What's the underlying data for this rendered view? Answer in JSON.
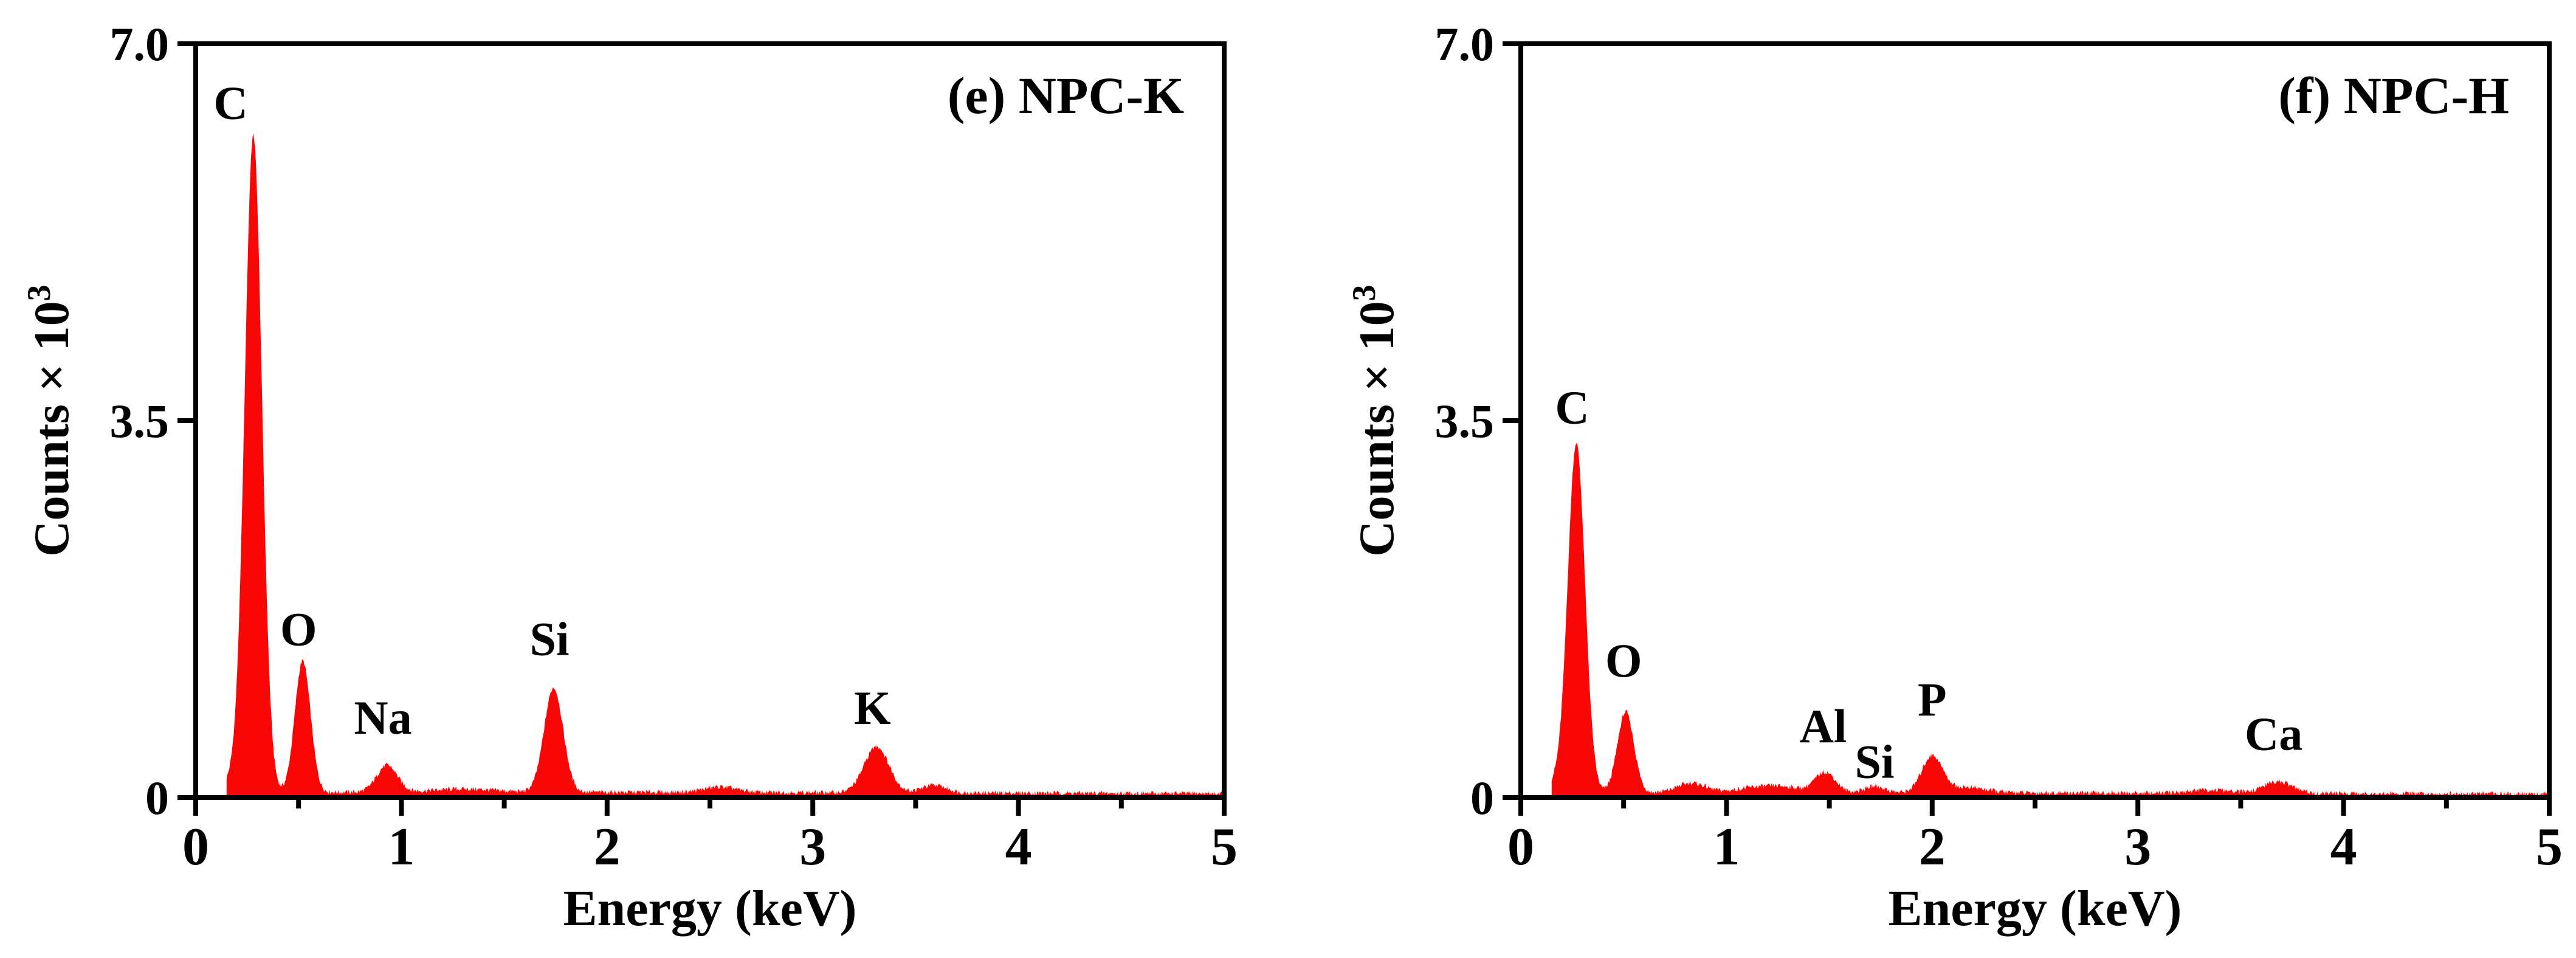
{
  "figure": {
    "background": "#ffffff",
    "spectrum_color": "#f90606",
    "axis_color": "#000000",
    "description": "EDS spectra of NPC-K and NPC-H samples"
  },
  "chart_data": [
    {
      "type": "area",
      "panel_id": "e",
      "panel_label": "(e) NPC-K",
      "xlabel": "Energy (keV)",
      "ylabel": "Counts × 10",
      "ylabel_exponent": "3",
      "xlim": [
        0,
        5
      ],
      "ylim": [
        0,
        7
      ],
      "x_major_ticks": [
        0,
        1,
        2,
        3,
        4,
        5
      ],
      "x_minor_ticks": [
        0.5,
        1.5,
        2.5,
        3.5,
        4.5
      ],
      "y_ticks": [
        {
          "value": 0,
          "label": "0"
        },
        {
          "value": 3.5,
          "label": "3.5"
        },
        {
          "value": 7,
          "label": "7.0"
        }
      ],
      "peaks": [
        {
          "element": "C",
          "center": 0.28,
          "height": 6.1,
          "sigma": 0.042,
          "label_x": 0.17,
          "label_y": 6.45
        },
        {
          "element": "O",
          "center": 0.52,
          "height": 1.22,
          "sigma": 0.038,
          "label_x": 0.5,
          "label_y": 1.56
        },
        {
          "element": "Na",
          "center": 0.93,
          "height": 0.25,
          "sigma": 0.05,
          "label_x": 0.91,
          "label_y": 0.74
        },
        {
          "element": "Si",
          "center": 1.74,
          "height": 0.97,
          "sigma": 0.046,
          "label_x": 1.72,
          "label_y": 1.47
        },
        {
          "element": "K",
          "center": 3.31,
          "height": 0.43,
          "sigma": 0.06,
          "label_x": 3.29,
          "label_y": 0.83
        }
      ],
      "minor_features": [
        {
          "center": 0.17,
          "height": 0.1,
          "sigma": 0.03
        },
        {
          "center": 1.3,
          "height": 0.03,
          "sigma": 0.15
        },
        {
          "center": 2.55,
          "height": 0.05,
          "sigma": 0.08
        },
        {
          "center": 3.59,
          "height": 0.07,
          "sigma": 0.06
        }
      ],
      "baseline_level": 0.05,
      "spectrum_range": [
        0.15,
        5.0
      ]
    },
    {
      "type": "area",
      "panel_id": "f",
      "panel_label": "(f) NPC-H",
      "xlabel": "Energy (keV)",
      "ylabel": "Counts × 10",
      "ylabel_exponent": "3",
      "xlim": [
        0,
        5
      ],
      "ylim": [
        0,
        7
      ],
      "x_major_ticks": [
        0,
        1,
        2,
        3,
        4,
        5
      ],
      "x_minor_ticks": [
        0.5,
        1.5,
        2.5,
        3.5,
        4.5
      ],
      "y_ticks": [
        {
          "value": 0,
          "label": "0"
        },
        {
          "value": 3.5,
          "label": "3.5"
        },
        {
          "value": 7,
          "label": "7.0"
        }
      ],
      "peaks": [
        {
          "element": "C",
          "center": 0.27,
          "height": 3.25,
          "sigma": 0.042,
          "label_x": 0.25,
          "label_y": 3.62
        },
        {
          "element": "O",
          "center": 0.51,
          "height": 0.75,
          "sigma": 0.04,
          "label_x": 0.5,
          "label_y": 1.27
        },
        {
          "element": "Al",
          "center": 1.48,
          "height": 0.19,
          "sigma": 0.05,
          "label_x": 1.47,
          "label_y": 0.66
        },
        {
          "element": "Si",
          "center": 1.72,
          "height": 0.06,
          "sigma": 0.05,
          "label_x": 1.72,
          "label_y": 0.33
        },
        {
          "element": "P",
          "center": 2.0,
          "height": 0.34,
          "sigma": 0.05,
          "label_x": 2.0,
          "label_y": 0.91
        },
        {
          "element": "Ca",
          "center": 3.68,
          "height": 0.11,
          "sigma": 0.07,
          "label_x": 3.66,
          "label_y": 0.59
        }
      ],
      "minor_features": [
        {
          "center": 0.16,
          "height": 0.08,
          "sigma": 0.03
        },
        {
          "center": 0.83,
          "height": 0.09,
          "sigma": 0.07
        },
        {
          "center": 1.15,
          "height": 0.05,
          "sigma": 0.1
        },
        {
          "center": 1.3,
          "height": 0.04,
          "sigma": 0.08
        },
        {
          "center": 2.17,
          "height": 0.05,
          "sigma": 0.09
        },
        {
          "center": 3.35,
          "height": 0.03,
          "sigma": 0.1
        }
      ],
      "baseline_level": 0.045,
      "spectrum_range": [
        0.15,
        5.0
      ]
    }
  ]
}
